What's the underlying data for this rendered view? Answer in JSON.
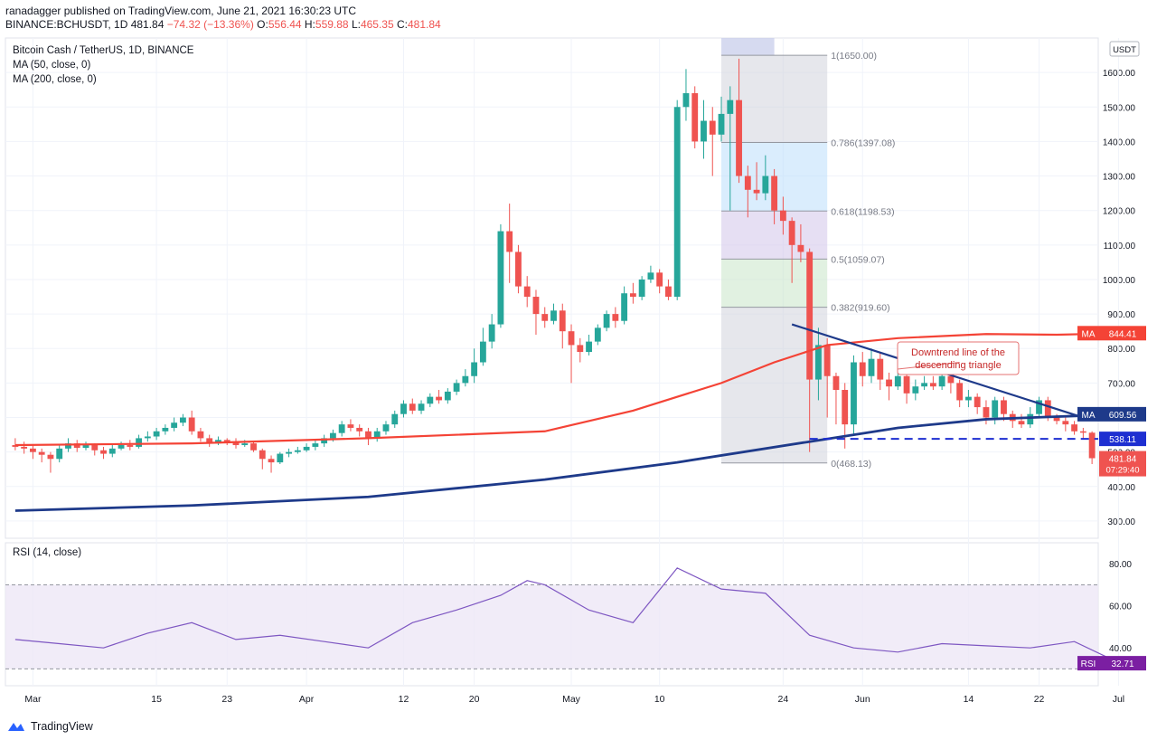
{
  "header": {
    "publisher_line": "ranadagger published on TradingView.com, June 21, 2021 16:30:23 UTC",
    "symbol": "BINANCE:BCHUSDT, 1D",
    "last": "481.84",
    "change": "−74.32 (−13.36%)",
    "o_label": "O:",
    "o_val": "556.44",
    "h_label": "H:",
    "h_val": "559.88",
    "l_label": "L:",
    "l_val": "465.35",
    "c_label": "C:",
    "c_val": "481.84"
  },
  "legend": {
    "title": "Bitcoin Cash / TetherUS, 1D, BINANCE",
    "ma50": "MA (50, close, 0)",
    "ma200": "MA (200, close, 0)",
    "rsi": "RSI (14, close)"
  },
  "footer": {
    "brand": "TradingView"
  },
  "colors": {
    "up": "#26a69a",
    "down": "#ef5350",
    "ma50": "#f44336",
    "ma200": "#1e3a8a",
    "fib_text": "#787b86"
  },
  "annotation": {
    "text_line1": "Downtrend line of the",
    "text_line2": "descending triangle"
  },
  "chart_data": {
    "type": "candlestick",
    "title": "Bitcoin Cash / TetherUS, 1D, BINANCE",
    "currency": "USDT",
    "price_axis": {
      "ticks": [
        300,
        400,
        500,
        600,
        700,
        800,
        900,
        1000,
        1100,
        1200,
        1300,
        1400,
        1500,
        1600
      ],
      "range": [
        250,
        1700
      ]
    },
    "x_axis": {
      "tick_labels": [
        "Mar",
        "15",
        "23",
        "Apr",
        "12",
        "20",
        "May",
        "10",
        "24",
        "Jun",
        "14",
        "22",
        "Jul"
      ],
      "tick_days": [
        2,
        16,
        24,
        33,
        44,
        52,
        63,
        73,
        87,
        96,
        108,
        116,
        125
      ]
    },
    "candles": [
      [
        520,
        515,
        540,
        505
      ],
      [
        515,
        510,
        530,
        495
      ],
      [
        510,
        500,
        520,
        480
      ],
      [
        500,
        492,
        510,
        470
      ],
      [
        492,
        480,
        500,
        440
      ],
      [
        480,
        510,
        520,
        470
      ],
      [
        510,
        525,
        540,
        500
      ],
      [
        525,
        512,
        535,
        500
      ],
      [
        512,
        520,
        530,
        505
      ],
      [
        520,
        505,
        525,
        490
      ],
      [
        505,
        495,
        515,
        480
      ],
      [
        495,
        510,
        520,
        485
      ],
      [
        510,
        520,
        530,
        505
      ],
      [
        520,
        515,
        535,
        505
      ],
      [
        515,
        540,
        550,
        510
      ],
      [
        540,
        545,
        560,
        530
      ],
      [
        545,
        560,
        570,
        535
      ],
      [
        560,
        570,
        580,
        550
      ],
      [
        570,
        585,
        600,
        560
      ],
      [
        585,
        600,
        610,
        575
      ],
      [
        600,
        560,
        620,
        550
      ],
      [
        560,
        540,
        570,
        530
      ],
      [
        540,
        525,
        550,
        515
      ],
      [
        525,
        535,
        545,
        520
      ],
      [
        535,
        530,
        540,
        520
      ],
      [
        530,
        520,
        540,
        510
      ],
      [
        520,
        525,
        535,
        515
      ],
      [
        525,
        505,
        530,
        500
      ],
      [
        505,
        480,
        510,
        450
      ],
      [
        480,
        470,
        490,
        440
      ],
      [
        470,
        495,
        500,
        465
      ],
      [
        495,
        500,
        510,
        485
      ],
      [
        500,
        505,
        515,
        495
      ],
      [
        505,
        515,
        525,
        500
      ],
      [
        515,
        525,
        535,
        505
      ],
      [
        525,
        540,
        550,
        515
      ],
      [
        540,
        555,
        565,
        530
      ],
      [
        555,
        580,
        590,
        545
      ],
      [
        580,
        570,
        595,
        560
      ],
      [
        570,
        560,
        580,
        545
      ],
      [
        560,
        540,
        570,
        520
      ],
      [
        540,
        560,
        570,
        530
      ],
      [
        560,
        580,
        590,
        550
      ],
      [
        580,
        610,
        620,
        570
      ],
      [
        610,
        640,
        650,
        600
      ],
      [
        640,
        620,
        655,
        610
      ],
      [
        620,
        640,
        650,
        610
      ],
      [
        640,
        660,
        670,
        630
      ],
      [
        660,
        650,
        680,
        640
      ],
      [
        650,
        675,
        685,
        640
      ],
      [
        675,
        700,
        710,
        665
      ],
      [
        700,
        720,
        740,
        690
      ],
      [
        720,
        760,
        800,
        700
      ],
      [
        760,
        820,
        860,
        750
      ],
      [
        820,
        870,
        900,
        800
      ],
      [
        870,
        1140,
        1160,
        860
      ],
      [
        1140,
        1080,
        1220,
        990
      ],
      [
        1080,
        980,
        1100,
        960
      ],
      [
        980,
        950,
        1010,
        920
      ],
      [
        950,
        900,
        970,
        840
      ],
      [
        900,
        880,
        920,
        860
      ],
      [
        880,
        910,
        930,
        870
      ],
      [
        910,
        850,
        930,
        800
      ],
      [
        850,
        810,
        870,
        700
      ],
      [
        810,
        790,
        830,
        760
      ],
      [
        790,
        820,
        840,
        780
      ],
      [
        820,
        860,
        870,
        810
      ],
      [
        860,
        900,
        910,
        850
      ],
      [
        900,
        880,
        920,
        860
      ],
      [
        880,
        960,
        980,
        870
      ],
      [
        960,
        950,
        990,
        930
      ],
      [
        950,
        1000,
        1010,
        940
      ],
      [
        1000,
        1020,
        1040,
        990
      ],
      [
        1020,
        980,
        1030,
        960
      ],
      [
        980,
        950,
        1000,
        940
      ],
      [
        950,
        1500,
        1520,
        940
      ],
      [
        1500,
        1540,
        1610,
        1460
      ],
      [
        1540,
        1400,
        1560,
        1380
      ],
      [
        1400,
        1460,
        1520,
        1350
      ],
      [
        1460,
        1420,
        1500,
        1300
      ],
      [
        1420,
        1480,
        1530,
        1400
      ],
      [
        1480,
        1520,
        1560,
        1200
      ],
      [
        1520,
        1300,
        1640,
        1280
      ],
      [
        1300,
        1260,
        1330,
        1180
      ],
      [
        1260,
        1250,
        1340,
        1230
      ],
      [
        1250,
        1300,
        1360,
        1230
      ],
      [
        1300,
        1200,
        1320,
        1160
      ],
      [
        1200,
        1170,
        1240,
        1130
      ],
      [
        1170,
        1100,
        1180,
        990
      ],
      [
        1100,
        1080,
        1160,
        1050
      ],
      [
        1080,
        710,
        1090,
        500
      ],
      [
        710,
        810,
        860,
        650
      ],
      [
        810,
        720,
        830,
        600
      ],
      [
        720,
        680,
        730,
        580
      ],
      [
        680,
        580,
        700,
        510
      ],
      [
        580,
        760,
        780,
        550
      ],
      [
        760,
        720,
        790,
        690
      ],
      [
        720,
        770,
        800,
        700
      ],
      [
        770,
        710,
        790,
        680
      ],
      [
        710,
        690,
        730,
        650
      ],
      [
        690,
        720,
        740,
        680
      ],
      [
        720,
        670,
        730,
        640
      ],
      [
        670,
        690,
        710,
        650
      ],
      [
        690,
        700,
        720,
        680
      ],
      [
        700,
        690,
        720,
        680
      ],
      [
        690,
        720,
        730,
        680
      ],
      [
        720,
        700,
        740,
        670
      ],
      [
        700,
        650,
        710,
        630
      ],
      [
        650,
        660,
        680,
        630
      ],
      [
        660,
        630,
        670,
        610
      ],
      [
        630,
        600,
        650,
        580
      ],
      [
        600,
        650,
        660,
        580
      ],
      [
        650,
        610,
        660,
        590
      ],
      [
        610,
        590,
        620,
        570
      ],
      [
        590,
        580,
        610,
        570
      ],
      [
        580,
        610,
        630,
        570
      ],
      [
        610,
        650,
        660,
        600
      ],
      [
        650,
        600,
        660,
        590
      ],
      [
        600,
        590,
        610,
        580
      ],
      [
        590,
        580,
        600,
        560
      ],
      [
        580,
        560,
        590,
        550
      ],
      [
        560,
        556,
        570,
        540
      ],
      [
        556,
        482,
        560,
        465
      ]
    ],
    "ma50": {
      "label": "MA",
      "value": 844.41,
      "points": [
        [
          0,
          520
        ],
        [
          20,
          525
        ],
        [
          40,
          540
        ],
        [
          60,
          560
        ],
        [
          70,
          620
        ],
        [
          80,
          700
        ],
        [
          86,
          760
        ],
        [
          92,
          810
        ],
        [
          100,
          830
        ],
        [
          110,
          842
        ],
        [
          118,
          840
        ],
        [
          125,
          844
        ]
      ]
    },
    "ma200": {
      "label": "MA",
      "value": 609.56,
      "points": [
        [
          0,
          330
        ],
        [
          20,
          345
        ],
        [
          40,
          370
        ],
        [
          60,
          420
        ],
        [
          75,
          470
        ],
        [
          90,
          530
        ],
        [
          100,
          570
        ],
        [
          110,
          595
        ],
        [
          125,
          609
        ]
      ]
    },
    "fibonacci": [
      {
        "level": "1(1650.00)",
        "price": 1650
      },
      {
        "level": "0.786(1397.08)",
        "price": 1397.08
      },
      {
        "level": "0.618(1198.53)",
        "price": 1198.53
      },
      {
        "level": "0.5(1059.07)",
        "price": 1059.07
      },
      {
        "level": "0.382(919.60)",
        "price": 919.6
      },
      {
        "level": "0(468.13)",
        "price": 468.13
      }
    ],
    "price_badges": [
      {
        "label": "MA",
        "value": "844.41"
      },
      {
        "label": "MA",
        "value": "609.56"
      },
      {
        "label": "",
        "value": "538.11"
      },
      {
        "label": "",
        "value": "481.84",
        "sub": "07:29:40"
      }
    ],
    "support_line": 538.11,
    "rsi": {
      "label": "RSI",
      "value": 32.71,
      "ticks": [
        40,
        60,
        80
      ],
      "band": [
        30,
        70
      ],
      "points": [
        [
          0,
          44
        ],
        [
          5,
          42
        ],
        [
          10,
          40
        ],
        [
          15,
          47
        ],
        [
          20,
          52
        ],
        [
          25,
          44
        ],
        [
          30,
          46
        ],
        [
          35,
          43
        ],
        [
          40,
          40
        ],
        [
          45,
          52
        ],
        [
          50,
          58
        ],
        [
          55,
          65
        ],
        [
          58,
          72
        ],
        [
          60,
          70
        ],
        [
          65,
          58
        ],
        [
          70,
          52
        ],
        [
          75,
          78
        ],
        [
          80,
          68
        ],
        [
          85,
          66
        ],
        [
          90,
          46
        ],
        [
          95,
          40
        ],
        [
          100,
          38
        ],
        [
          105,
          42
        ],
        [
          110,
          41
        ],
        [
          115,
          40
        ],
        [
          120,
          43
        ],
        [
          125,
          33
        ]
      ]
    }
  }
}
